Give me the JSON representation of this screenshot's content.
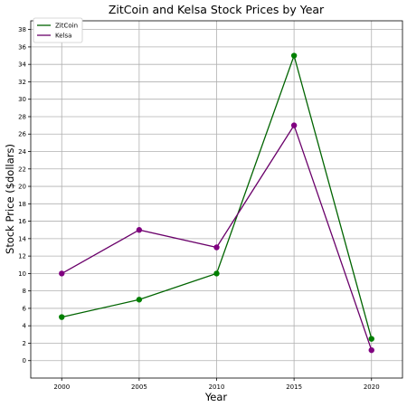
{
  "chart_data": {
    "type": "line",
    "title": "ZitCoin and Kelsa Stock Prices by Year",
    "xlabel": "Year",
    "ylabel": "Stock Price ($dollars)",
    "x": [
      2000,
      2005,
      2010,
      2015,
      2020
    ],
    "xlim": [
      1998,
      2022
    ],
    "ylim": [
      -2,
      39
    ],
    "xticks": [
      2000,
      2005,
      2010,
      2015,
      2020
    ],
    "yticks": [
      0,
      2,
      4,
      6,
      8,
      10,
      12,
      14,
      16,
      18,
      20,
      22,
      24,
      26,
      28,
      30,
      32,
      34,
      36,
      38
    ],
    "grid": true,
    "legend_position": "top-left",
    "series": [
      {
        "name": "ZitCoin",
        "color": "#006400",
        "marker_color": "#008000",
        "values": [
          5,
          7,
          10,
          35,
          2.5
        ]
      },
      {
        "name": "Kelsa",
        "color": "#6a006a",
        "marker_color": "#800080",
        "values": [
          10,
          15,
          13,
          27,
          1.2
        ]
      }
    ]
  }
}
